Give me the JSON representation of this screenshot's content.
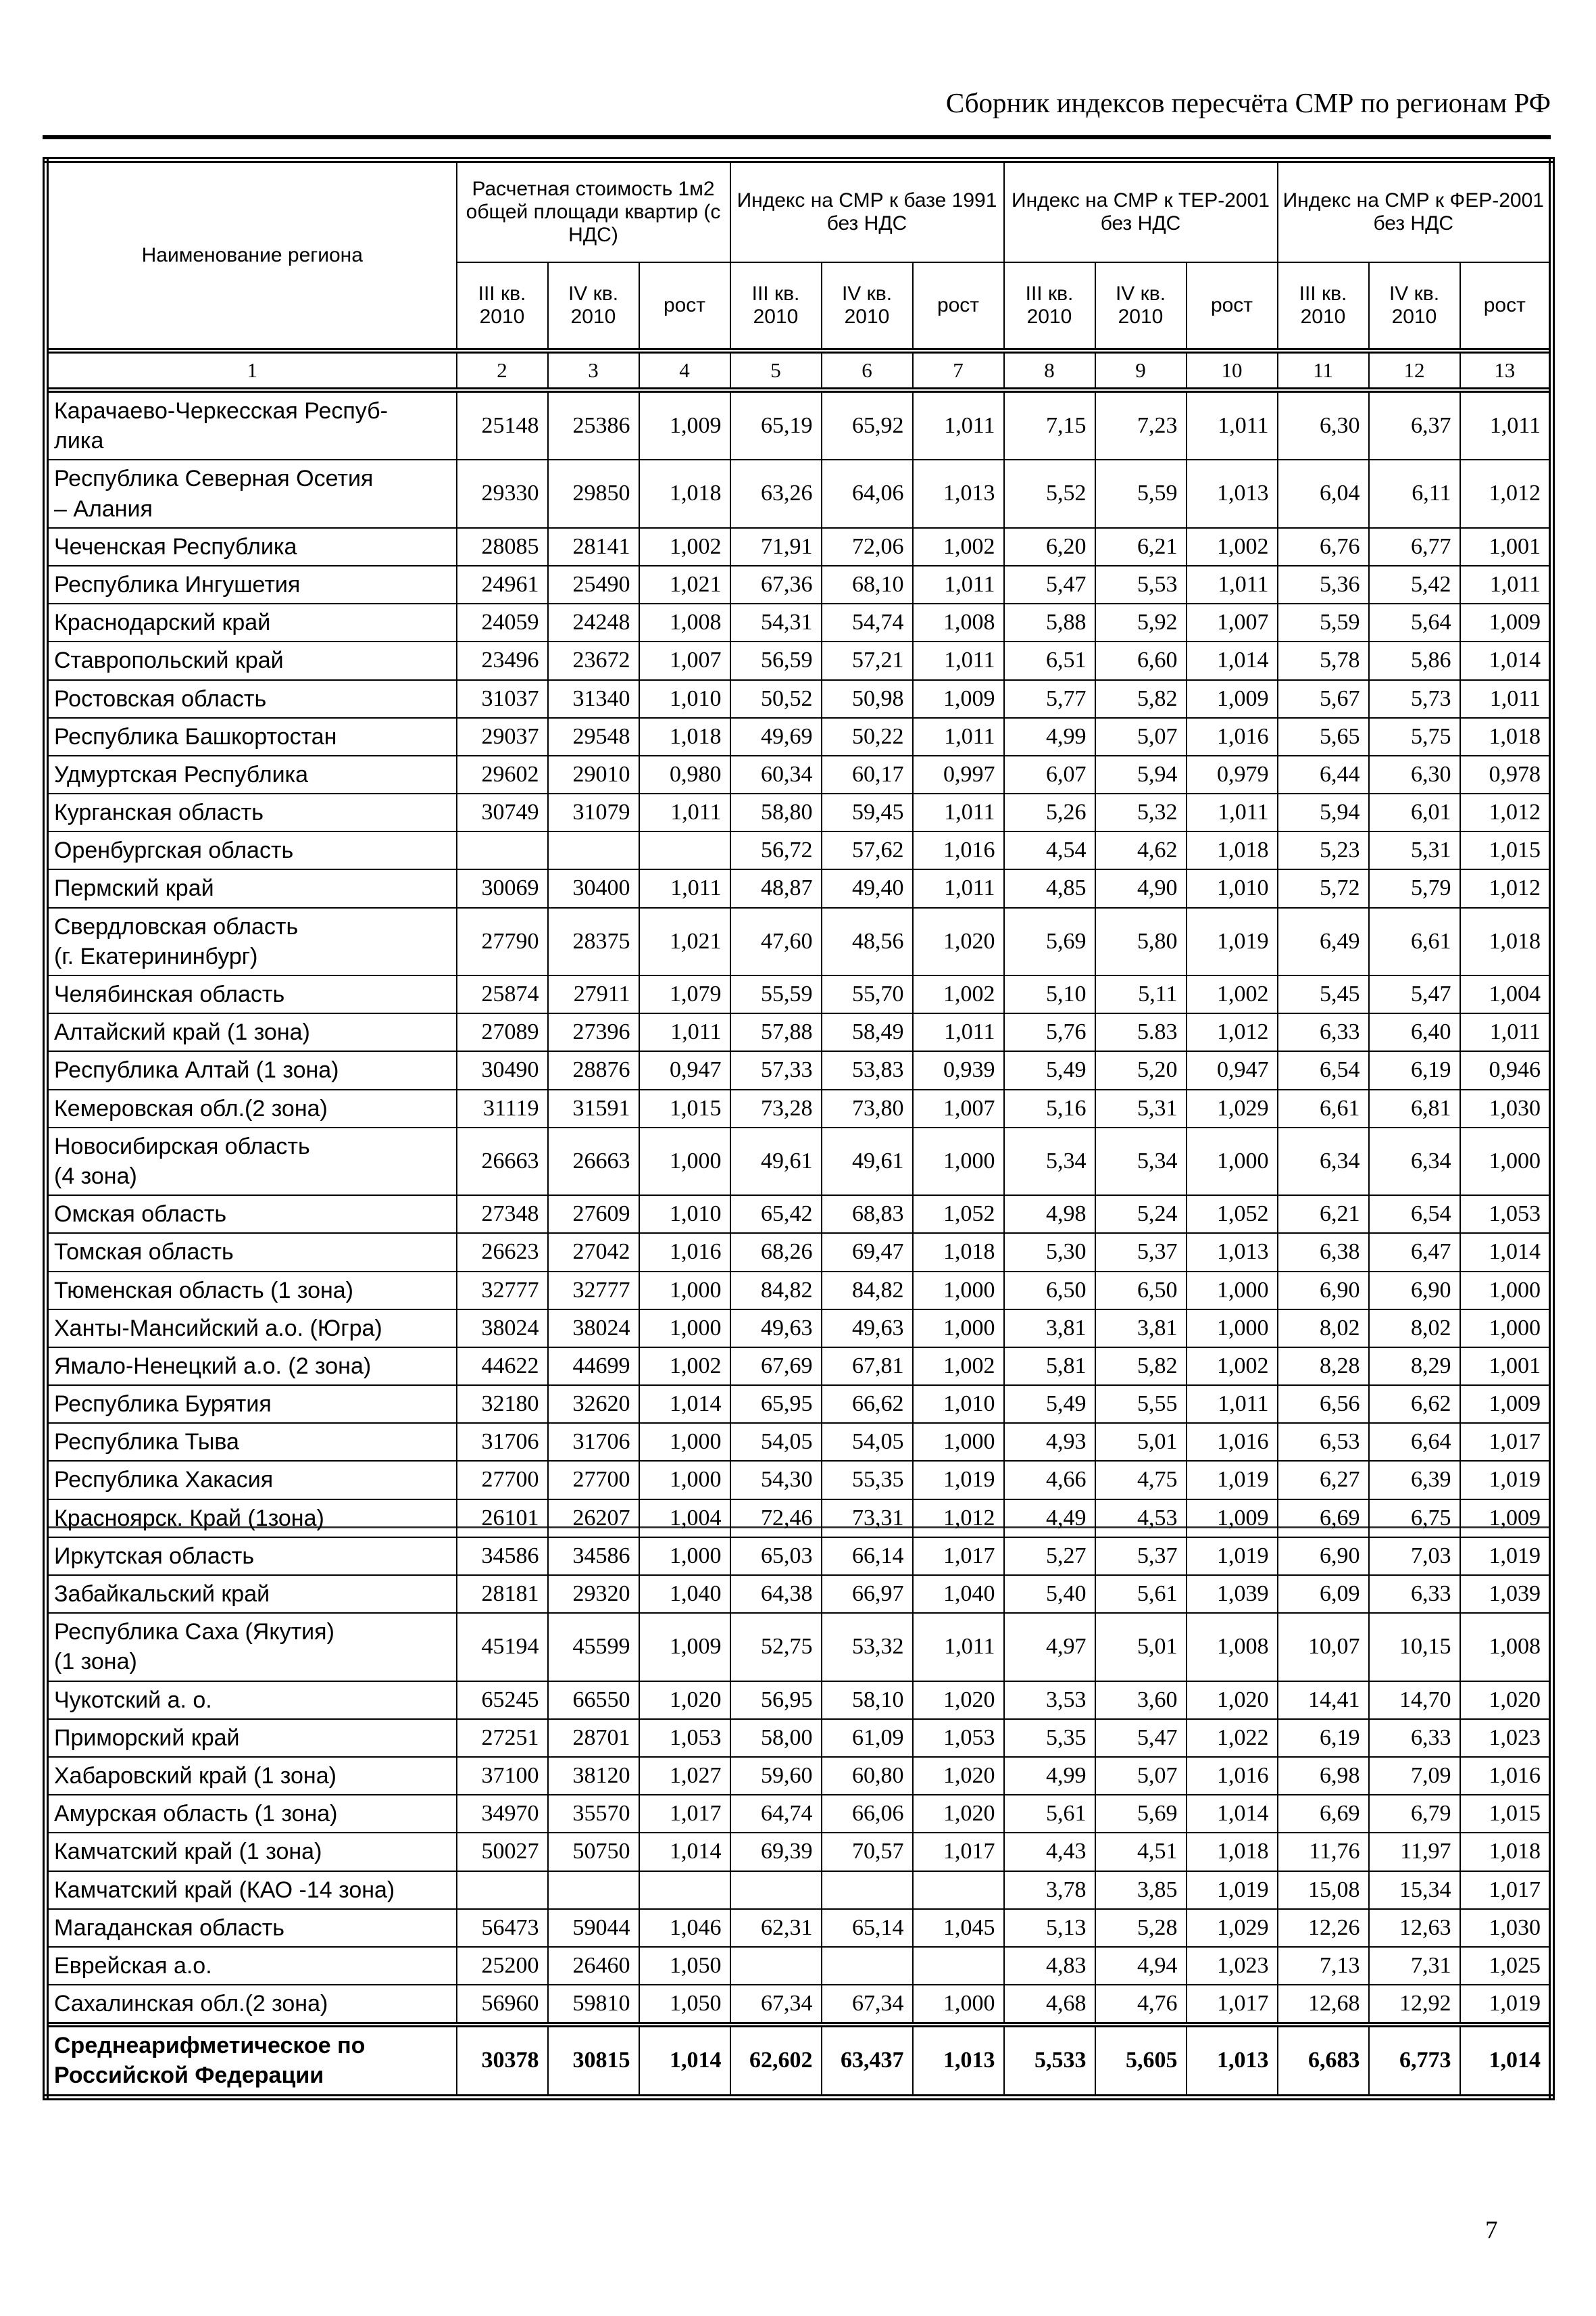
{
  "page": {
    "title": "Сборник индексов пересчёта СМР по регионам РФ",
    "page_number": "7"
  },
  "table": {
    "header": {
      "region": "Наименование региона",
      "groups": [
        {
          "label": "Расчетная стоимость 1м2 общей площади квартир (с НДС)"
        },
        {
          "label": "Индекс на СМР к базе 1991 без НДС"
        },
        {
          "label": "Индекс на СМР к ТЕР-2001 без НДС"
        },
        {
          "label": "Индекс на СМР к ФЕР-2001 без НДС"
        }
      ],
      "sub": [
        "III кв. 2010",
        "IV кв. 2010",
        "рост"
      ],
      "column_numbers": [
        "1",
        "2",
        "3",
        "4",
        "5",
        "6",
        "7",
        "8",
        "9",
        "10",
        "11",
        "12",
        "13"
      ]
    },
    "rows": [
      {
        "region": "Карачаево-Черкесская Респуб-\nлика",
        "values": [
          "25148",
          "25386",
          "1,009",
          "65,19",
          "65,92",
          "1,011",
          "7,15",
          "7,23",
          "1,011",
          "6,30",
          "6,37",
          "1,011"
        ]
      },
      {
        "region": "Республика Северная Осетия\n– Алания",
        "values": [
          "29330",
          "29850",
          "1,018",
          "63,26",
          "64,06",
          "1,013",
          "5,52",
          "5,59",
          "1,013",
          "6,04",
          "6,11",
          "1,012"
        ]
      },
      {
        "region": "Чеченская Республика",
        "values": [
          "28085",
          "28141",
          "1,002",
          "71,91",
          "72,06",
          "1,002",
          "6,20",
          "6,21",
          "1,002",
          "6,76",
          "6,77",
          "1,001"
        ]
      },
      {
        "region": "Республика Ингушетия",
        "values": [
          "24961",
          "25490",
          "1,021",
          "67,36",
          "68,10",
          "1,011",
          "5,47",
          "5,53",
          "1,011",
          "5,36",
          "5,42",
          "1,011"
        ]
      },
      {
        "region": "Краснодарский край",
        "values": [
          "24059",
          "24248",
          "1,008",
          "54,31",
          "54,74",
          "1,008",
          "5,88",
          "5,92",
          "1,007",
          "5,59",
          "5,64",
          "1,009"
        ]
      },
      {
        "region": "Ставропольский край",
        "values": [
          "23496",
          "23672",
          "1,007",
          "56,59",
          "57,21",
          "1,011",
          "6,51",
          "6,60",
          "1,014",
          "5,78",
          "5,86",
          "1,014"
        ]
      },
      {
        "region": "Ростовская область",
        "values": [
          "31037",
          "31340",
          "1,010",
          "50,52",
          "50,98",
          "1,009",
          "5,77",
          "5,82",
          "1,009",
          "5,67",
          "5,73",
          "1,011"
        ]
      },
      {
        "region": "Республика Башкортостан",
        "values": [
          "29037",
          "29548",
          "1,018",
          "49,69",
          "50,22",
          "1,011",
          "4,99",
          "5,07",
          "1,016",
          "5,65",
          "5,75",
          "1,018"
        ]
      },
      {
        "region": "Удмуртская Республика",
        "values": [
          "29602",
          "29010",
          "0,980",
          "60,34",
          "60,17",
          "0,997",
          "6,07",
          "5,94",
          "0,979",
          "6,44",
          "6,30",
          "0,978"
        ]
      },
      {
        "region": "Курганская область",
        "values": [
          "30749",
          "31079",
          "1,011",
          "58,80",
          "59,45",
          "1,011",
          "5,26",
          "5,32",
          "1,011",
          "5,94",
          "6,01",
          "1,012"
        ]
      },
      {
        "region": "Оренбургская область",
        "values": [
          "",
          "",
          "",
          "56,72",
          "57,62",
          "1,016",
          "4,54",
          "4,62",
          "1,018",
          "5,23",
          "5,31",
          "1,015"
        ]
      },
      {
        "region": "Пермский край",
        "values": [
          "30069",
          "30400",
          "1,011",
          "48,87",
          "49,40",
          "1,011",
          "4,85",
          "4,90",
          "1,010",
          "5,72",
          "5,79",
          "1,012"
        ]
      },
      {
        "region": "Свердловская область\n(г. Екатерининбург)",
        "values": [
          "27790",
          "28375",
          "1,021",
          "47,60",
          "48,56",
          "1,020",
          "5,69",
          "5,80",
          "1,019",
          "6,49",
          "6,61",
          "1,018"
        ]
      },
      {
        "region": "Челябинская область",
        "values": [
          "25874",
          "27911",
          "1,079",
          "55,59",
          "55,70",
          "1,002",
          "5,10",
          "5,11",
          "1,002",
          "5,45",
          "5,47",
          "1,004"
        ]
      },
      {
        "region": "Алтайский край (1 зона)",
        "values": [
          "27089",
          "27396",
          "1,011",
          "57,88",
          "58,49",
          "1,011",
          "5,76",
          "5.83",
          "1,012",
          "6,33",
          "6,40",
          "1,011"
        ]
      },
      {
        "region": "Республика Алтай (1 зона)",
        "values": [
          "30490",
          "28876",
          "0,947",
          "57,33",
          "53,83",
          "0,939",
          "5,49",
          "5,20",
          "0,947",
          "6,54",
          "6,19",
          "0,946"
        ]
      },
      {
        "region": "Кемеровская обл.(2 зона)",
        "values": [
          "31119",
          "31591",
          "1,015",
          "73,28",
          "73,80",
          "1,007",
          "5,16",
          "5,31",
          "1,029",
          "6,61",
          "6,81",
          "1,030"
        ]
      },
      {
        "region": "Новосибирская область\n(4 зона)",
        "values": [
          "26663",
          "26663",
          "1,000",
          "49,61",
          "49,61",
          "1,000",
          "5,34",
          "5,34",
          "1,000",
          "6,34",
          "6,34",
          "1,000"
        ]
      },
      {
        "region": "Омская область",
        "values": [
          "27348",
          "27609",
          "1,010",
          "65,42",
          "68,83",
          "1,052",
          "4,98",
          "5,24",
          "1,052",
          "6,21",
          "6,54",
          "1,053"
        ]
      },
      {
        "region": "Томская область",
        "values": [
          "26623",
          "27042",
          "1,016",
          "68,26",
          "69,47",
          "1,018",
          "5,30",
          "5,37",
          "1,013",
          "6,38",
          "6,47",
          "1,014"
        ]
      },
      {
        "region": "Тюменская область (1 зона)",
        "values": [
          "32777",
          "32777",
          "1,000",
          "84,82",
          "84,82",
          "1,000",
          "6,50",
          "6,50",
          "1,000",
          "6,90",
          "6,90",
          "1,000"
        ]
      },
      {
        "region": "Ханты-Мансийский а.о. (Югра)",
        "values": [
          "38024",
          "38024",
          "1,000",
          "49,63",
          "49,63",
          "1,000",
          "3,81",
          "3,81",
          "1,000",
          "8,02",
          "8,02",
          "1,000"
        ]
      },
      {
        "region": "Ямало-Ненецкий а.о. (2 зона)",
        "values": [
          "44622",
          "44699",
          "1,002",
          "67,69",
          "67,81",
          "1,002",
          "5,81",
          "5,82",
          "1,002",
          "8,28",
          "8,29",
          "1,001"
        ]
      },
      {
        "region": "Республика Бурятия",
        "values": [
          "32180",
          "32620",
          "1,014",
          "65,95",
          "66,62",
          "1,010",
          "5,49",
          "5,55",
          "1,011",
          "6,56",
          "6,62",
          "1,009"
        ]
      },
      {
        "region": "Республика Тыва",
        "values": [
          "31706",
          "31706",
          "1,000",
          "54,05",
          "54,05",
          "1,000",
          "4,93",
          "5,01",
          "1,016",
          "6,53",
          "6,64",
          "1,017"
        ]
      },
      {
        "region": "Республика Хакасия",
        "values": [
          "27700",
          "27700",
          "1,000",
          "54,30",
          "55,35",
          "1,019",
          "4,66",
          "4,75",
          "1,019",
          "6,27",
          "6,39",
          "1,019"
        ]
      },
      {
        "region": "Красноярск. Край (1зона)",
        "strike": true,
        "values": [
          "26101",
          "26207",
          "1,004",
          "72,46",
          "73,31",
          "1,012",
          "4,49",
          "4,53",
          "1,009",
          "6,69",
          "6,75",
          "1,009"
        ]
      },
      {
        "region": "Иркутская область",
        "values": [
          "34586",
          "34586",
          "1,000",
          "65,03",
          "66,14",
          "1,017",
          "5,27",
          "5,37",
          "1,019",
          "6,90",
          "7,03",
          "1,019"
        ]
      },
      {
        "region": "Забайкальский край",
        "values": [
          "28181",
          "29320",
          "1,040",
          "64,38",
          "66,97",
          "1,040",
          "5,40",
          "5,61",
          "1,039",
          "6,09",
          "6,33",
          "1,039"
        ]
      },
      {
        "region": "Республика Саха (Якутия)\n(1 зона)",
        "values": [
          "45194",
          "45599",
          "1,009",
          "52,75",
          "53,32",
          "1,011",
          "4,97",
          "5,01",
          "1,008",
          "10,07",
          "10,15",
          "1,008"
        ]
      },
      {
        "region": "Чукотский а. о.",
        "values": [
          "65245",
          "66550",
          "1,020",
          "56,95",
          "58,10",
          "1,020",
          "3,53",
          "3,60",
          "1,020",
          "14,41",
          "14,70",
          "1,020"
        ]
      },
      {
        "region": "Приморский край",
        "values": [
          "27251",
          "28701",
          "1,053",
          "58,00",
          "61,09",
          "1,053",
          "5,35",
          "5,47",
          "1,022",
          "6,19",
          "6,33",
          "1,023"
        ]
      },
      {
        "region": "Хабаровский край (1 зона)",
        "values": [
          "37100",
          "38120",
          "1,027",
          "59,60",
          "60,80",
          "1,020",
          "4,99",
          "5,07",
          "1,016",
          "6,98",
          "7,09",
          "1,016"
        ]
      },
      {
        "region": "Амурская область (1 зона)",
        "values": [
          "34970",
          "35570",
          "1,017",
          "64,74",
          "66,06",
          "1,020",
          "5,61",
          "5,69",
          "1,014",
          "6,69",
          "6,79",
          "1,015"
        ]
      },
      {
        "region": "Камчатский край (1 зона)",
        "values": [
          "50027",
          "50750",
          "1,014",
          "69,39",
          "70,57",
          "1,017",
          "4,43",
          "4,51",
          "1,018",
          "11,76",
          "11,97",
          "1,018"
        ]
      },
      {
        "region": "Камчатский край (КАО -14 зона)",
        "values": [
          "",
          "",
          "",
          "",
          "",
          "",
          "3,78",
          "3,85",
          "1,019",
          "15,08",
          "15,34",
          "1,017"
        ]
      },
      {
        "region": "Магаданская область",
        "values": [
          "56473",
          "59044",
          "1,046",
          "62,31",
          "65,14",
          "1,045",
          "5,13",
          "5,28",
          "1,029",
          "12,26",
          "12,63",
          "1,030"
        ]
      },
      {
        "region": "Еврейская а.о.",
        "values": [
          "25200",
          "26460",
          "1,050",
          "",
          "",
          "",
          "4,83",
          "4,94",
          "1,023",
          "7,13",
          "7,31",
          "1,025"
        ]
      },
      {
        "region": "Сахалинская обл.(2 зона)",
        "values": [
          "56960",
          "59810",
          "1,050",
          "67,34",
          "67,34",
          "1,000",
          "4,68",
          "4,76",
          "1,017",
          "12,68",
          "12,92",
          "1,019"
        ]
      }
    ],
    "total_row": {
      "region": "Среднеарифметическое по\nРоссийской Федерации",
      "values": [
        "30378",
        "30815",
        "1,014",
        "62,602",
        "63,437",
        "1,013",
        "5,533",
        "5,605",
        "1,013",
        "6,683",
        "6,773",
        "1,014"
      ]
    }
  }
}
